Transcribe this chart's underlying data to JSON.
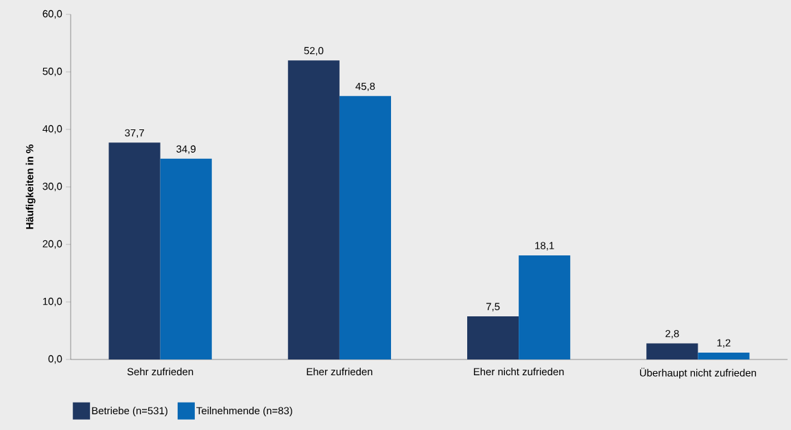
{
  "chart_data": {
    "type": "bar",
    "ylabel": "Häufigkeiten in %",
    "categories": [
      "Sehr zufrieden",
      "Eher zufrieden",
      "Eher nicht zufrieden",
      "Überhaupt nicht zufrieden"
    ],
    "series": [
      {
        "name": "Betriebe (n=531)",
        "color": "#1f3761",
        "values": [
          37.7,
          52.0,
          7.5,
          2.8
        ],
        "value_labels": [
          "37,7",
          "52,0",
          "7,5",
          "2,8"
        ]
      },
      {
        "name": "Teilnehmende (n=83)",
        "color": "#0868b4",
        "values": [
          34.9,
          45.8,
          18.1,
          1.2
        ],
        "value_labels": [
          "34,9",
          "45,8",
          "18,1",
          "1,2"
        ]
      }
    ],
    "ylim": [
      0,
      60
    ],
    "yticks": [
      {
        "value": 0,
        "label": "0,0"
      },
      {
        "value": 10,
        "label": "10,0"
      },
      {
        "value": 20,
        "label": "20,0"
      },
      {
        "value": 30,
        "label": "30,0"
      },
      {
        "value": 40,
        "label": "40,0"
      },
      {
        "value": 50,
        "label": "50,0"
      },
      {
        "value": 60,
        "label": "60,0"
      }
    ],
    "grid": false,
    "legend": "bottom left"
  }
}
